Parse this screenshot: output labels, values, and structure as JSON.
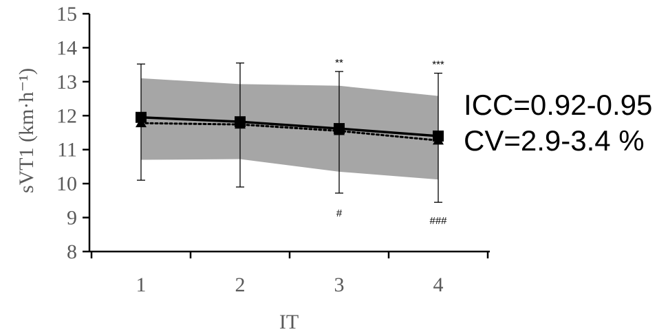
{
  "chart_data": {
    "type": "line",
    "xlabel": "IT",
    "ylabel": "sVT1 (km·h⁻¹)",
    "ylim": [
      8,
      15
    ],
    "yticks": [
      8,
      9,
      10,
      11,
      12,
      13,
      14,
      15
    ],
    "categories": [
      "1",
      "2",
      "3",
      "4"
    ],
    "grid": false,
    "series": [
      {
        "marker": "square",
        "line_style": "solid",
        "values": [
          11.95,
          11.82,
          11.62,
          11.4
        ],
        "error_low": [
          10.1,
          9.9,
          9.72,
          9.45
        ],
        "error_high": [
          13.52,
          13.55,
          13.3,
          13.25
        ]
      },
      {
        "marker": "triangle",
        "line_style": "dotted",
        "values": [
          11.78,
          11.74,
          11.55,
          11.27
        ]
      }
    ],
    "band": {
      "low": [
        10.7,
        10.72,
        10.35,
        10.12
      ],
      "high": [
        13.1,
        12.93,
        12.88,
        12.58
      ]
    },
    "annotations": [
      {
        "category": "3",
        "text": "**",
        "position": "above"
      },
      {
        "category": "4",
        "text": "***",
        "position": "above"
      },
      {
        "category": "3",
        "text": "#",
        "position": "below"
      },
      {
        "category": "4",
        "text": "###",
        "position": "below"
      }
    ],
    "colors": {
      "band": "#a6a6a6",
      "axis": "#000000",
      "labels": "#595959"
    }
  },
  "stats": {
    "icc": "ICC=0.92-0.95",
    "cv": "CV=2.9-3.4 %"
  }
}
